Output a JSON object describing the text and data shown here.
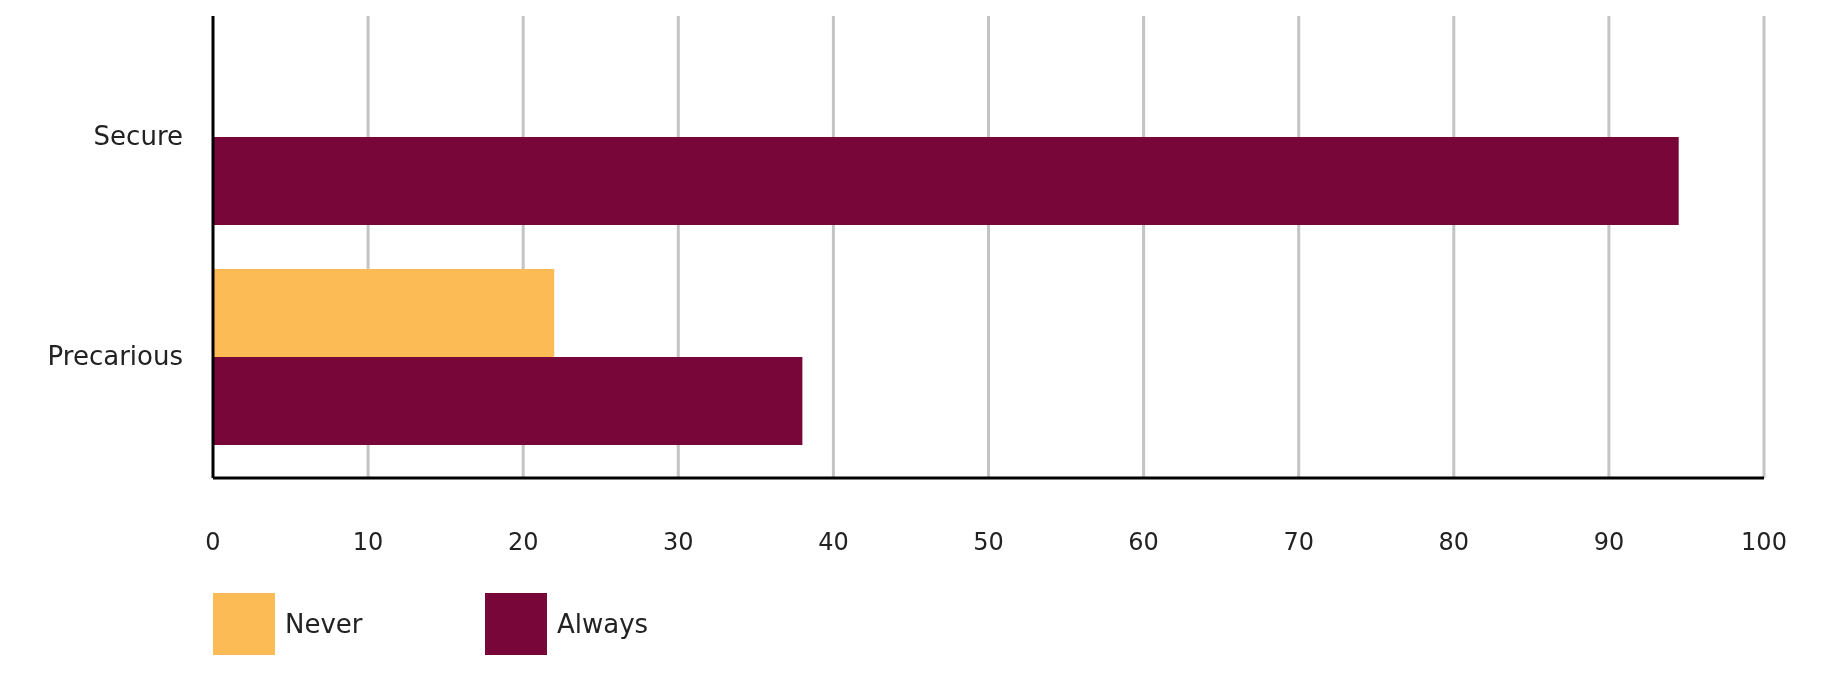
{
  "chart_data": {
    "type": "bar",
    "orientation": "horizontal",
    "categories": [
      "Secure",
      "Precarious"
    ],
    "series": [
      {
        "name": "Never",
        "color": "#fdbb55",
        "values": [
          0,
          22
        ]
      },
      {
        "name": "Always",
        "color": "#790638",
        "values": [
          94.5,
          38
        ]
      }
    ],
    "xlim": [
      0,
      100
    ],
    "xticks": [
      0,
      10,
      20,
      30,
      40,
      50,
      60,
      70,
      80,
      90,
      100
    ],
    "grid": "x",
    "legend": "bottom left"
  }
}
